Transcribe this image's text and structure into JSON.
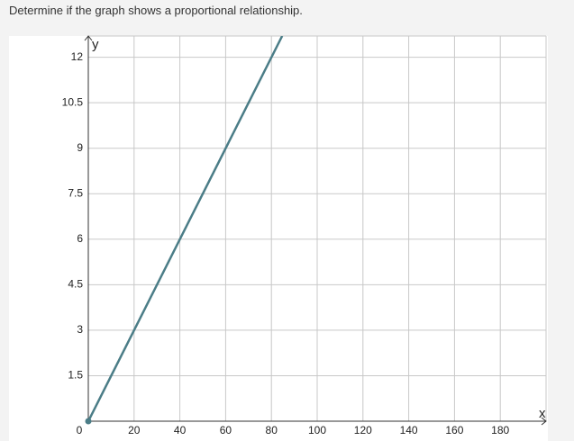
{
  "question": "Determine if the graph shows a proportional relationship.",
  "chart_data": {
    "type": "line",
    "xlabel": "x",
    "ylabel": "y",
    "xlim": [
      0,
      200
    ],
    "ylim": [
      0,
      12.7
    ],
    "xticks": [
      0,
      20,
      40,
      60,
      80,
      100,
      120,
      140,
      160,
      180
    ],
    "yticks": [
      1.5,
      3,
      4.5,
      6,
      7.5,
      9,
      10.5,
      12
    ],
    "grid": true,
    "x": [
      0,
      84.7
    ],
    "series": [
      {
        "color": "#4b7d87",
        "values": [
          0,
          12.7
        ]
      }
    ]
  }
}
